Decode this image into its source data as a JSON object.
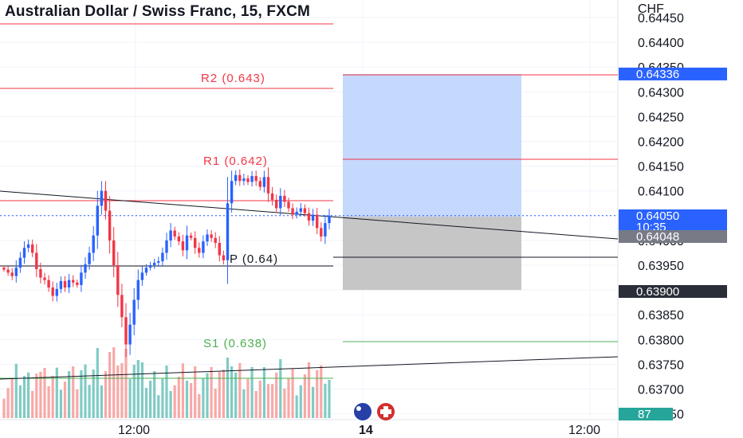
{
  "header": {
    "title": "Australian Dollar / Swiss Franc, 15, FXCM"
  },
  "price_axis": {
    "unit": "CHF",
    "ticks": [
      "0.64450",
      "0.64400",
      "0.64350",
      "0.64300",
      "0.64250",
      "0.64200",
      "0.64150",
      "0.64100",
      "0.64050",
      "0.64000",
      "0.63950",
      "0.63900",
      "0.63850",
      "0.63800",
      "0.63750",
      "0.63700",
      "0.63650"
    ]
  },
  "time_axis": {
    "labels": [
      "12:00",
      "14",
      "12:00"
    ]
  },
  "badges": {
    "target": "0.64336",
    "current": "0.64050",
    "countdown": "10:35",
    "entry": "0.64048",
    "stop": "0.63900",
    "volume": "87"
  },
  "levels": {
    "r2": "R2 (0.643)",
    "r1": "R1 (0.642)",
    "p": "P (0.64)",
    "s1": "S1 (0.638)"
  },
  "colors": {
    "up": "#2962ff",
    "down": "#f23645",
    "vol_up": "#80cbc4",
    "vol_down": "#f7a9a7",
    "resistance": "#f23645",
    "support": "#4caf50",
    "pivot": "#131722",
    "profit_zone": "#c5d8fd",
    "loss_zone": "#c6c6c6",
    "badge_blue": "#2962ff",
    "badge_gray": "#787b86",
    "badge_dark": "#2a2e39",
    "badge_green": "#26a69a"
  },
  "chart_data": {
    "type": "candlestick",
    "title": "Australian Dollar / Swiss Franc, 15, FXCM",
    "ylabel": "CHF",
    "ylim": [
      0.63635,
      0.64465
    ],
    "x_tick_labels": [
      "12:00",
      "14",
      "12:00"
    ],
    "pivot_levels": [
      {
        "name": "R2",
        "value": 0.643
      },
      {
        "name": "R1",
        "value": 0.642
      },
      {
        "name": "P",
        "value": 0.64
      },
      {
        "name": "S1",
        "value": 0.638
      }
    ],
    "position": {
      "entry": 0.64048,
      "target": 0.64336,
      "stop": 0.639
    },
    "last_price": 0.6405,
    "current_volume": 87,
    "close_path": [
      0.63941,
      0.63935,
      0.63928,
      0.63945,
      0.63965,
      0.63985,
      0.63992,
      0.63975,
      0.63942,
      0.63925,
      0.6392,
      0.63905,
      0.63888,
      0.63902,
      0.63918,
      0.63905,
      0.6392,
      0.63915,
      0.6391,
      0.63935,
      0.63952,
      0.63975,
      0.6401,
      0.6407,
      0.641,
      0.6406,
      0.64,
      0.6395,
      0.6389,
      0.63845,
      0.6379,
      0.6383,
      0.6388,
      0.6392,
      0.63935,
      0.63945,
      0.6395,
      0.63955,
      0.63958,
      0.63975,
      0.64,
      0.6402,
      0.64008,
      0.63998,
      0.6398,
      0.6401,
      0.64005,
      0.63985,
      0.63975,
      0.63998,
      0.64012,
      0.64005,
      0.63995,
      0.6397,
      0.6396,
      0.64075,
      0.6412,
      0.64132,
      0.6412,
      0.64125,
      0.64118,
      0.6413,
      0.6412,
      0.64108,
      0.64128,
      0.64095,
      0.64082,
      0.64065,
      0.6409,
      0.64078,
      0.64065,
      0.64052,
      0.64058,
      0.64065,
      0.64055,
      0.6404,
      0.64052,
      0.64025,
      0.64008,
      0.64035,
      0.6405
    ]
  }
}
